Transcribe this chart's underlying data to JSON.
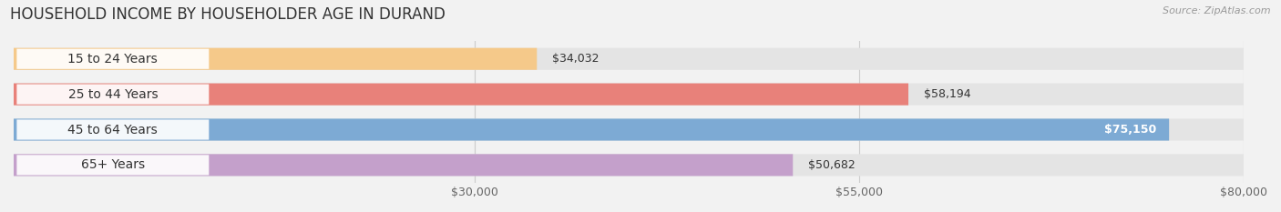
{
  "title": "HOUSEHOLD INCOME BY HOUSEHOLDER AGE IN DURAND",
  "source": "Source: ZipAtlas.com",
  "categories": [
    "15 to 24 Years",
    "25 to 44 Years",
    "45 to 64 Years",
    "65+ Years"
  ],
  "values": [
    34032,
    58194,
    75150,
    50682
  ],
  "bar_colors": [
    "#f5c98a",
    "#e8817a",
    "#7daad4",
    "#c4a0cb"
  ],
  "bar_edge_colors": [
    "#e0b070",
    "#cc6060",
    "#5588bb",
    "#a87ab8"
  ],
  "label_colors": [
    "#444444",
    "#444444",
    "#ffffff",
    "#444444"
  ],
  "value_labels": [
    "$34,032",
    "$58,194",
    "$75,150",
    "$50,682"
  ],
  "xmin": 0,
  "xmax": 80000,
  "xticks": [
    30000,
    55000,
    80000
  ],
  "xtick_labels": [
    "$30,000",
    "$55,000",
    "$80,000"
  ],
  "background_color": "#f2f2f2",
  "bar_background_color": "#e4e4e4",
  "label_bg_color": "#ffffff",
  "title_fontsize": 12,
  "source_fontsize": 8,
  "label_fontsize": 10,
  "tick_fontsize": 9,
  "value_label_fontsize": 9
}
